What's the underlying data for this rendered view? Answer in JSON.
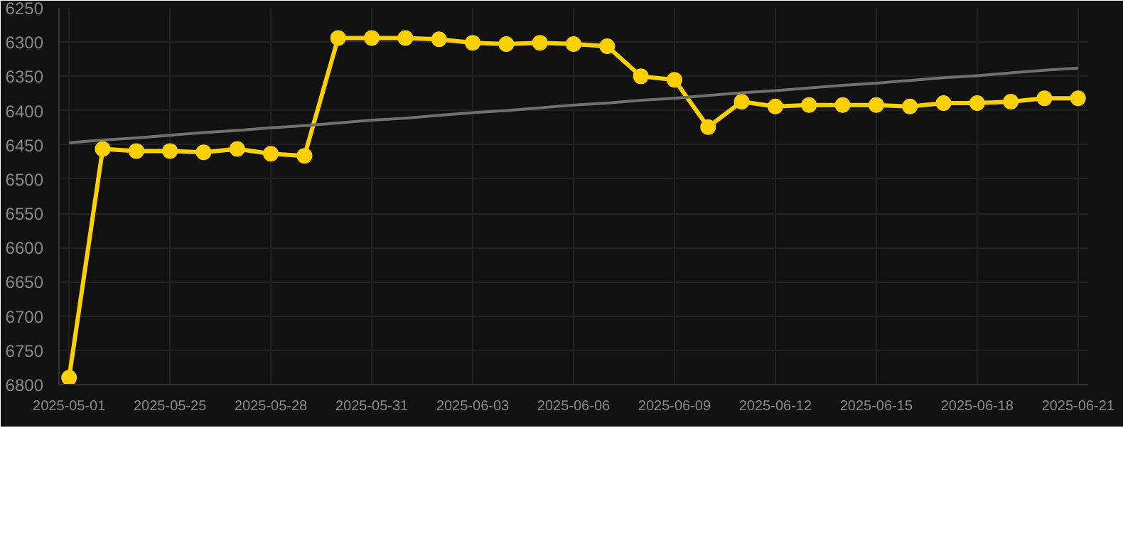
{
  "chart_data": {
    "type": "line",
    "categories": [
      "2025-05-01",
      null,
      null,
      "2025-05-25",
      null,
      null,
      "2025-05-28",
      null,
      null,
      "2025-05-31",
      null,
      null,
      "2025-06-03",
      null,
      null,
      "2025-06-06",
      null,
      null,
      "2025-06-09",
      null,
      null,
      "2025-06-12",
      null,
      null,
      "2025-06-15",
      null,
      null,
      "2025-06-18",
      null,
      null,
      "2025-06-21"
    ],
    "series": [
      {
        "color": "#ffd000",
        "marker": "circle",
        "values": [
          6790,
          6456,
          6459,
          6459,
          6461,
          6456,
          6463,
          6466,
          6294,
          6294,
          6294,
          6296,
          6301,
          6303,
          6301,
          6303,
          6306,
          6350,
          6355,
          6424,
          6387,
          6394,
          6392,
          6392,
          6392,
          6394,
          6389,
          6389,
          6387,
          6382,
          6382
        ]
      },
      {
        "type": "line",
        "color": "#707070",
        "marker": "none",
        "values": [
          6447,
          6443,
          6440,
          6436,
          6432,
          6429,
          6425,
          6422,
          6418,
          6414,
          6411,
          6407,
          6403,
          6400,
          6396,
          6392,
          6389,
          6385,
          6382,
          6378,
          6374,
          6371,
          6367,
          6363,
          6360,
          6356,
          6352,
          6349,
          6345,
          6341,
          6338
        ]
      }
    ],
    "ylim": [
      6800,
      6250
    ],
    "yticks": [
      6250,
      6300,
      6350,
      6400,
      6450,
      6500,
      6550,
      6600,
      6650,
      6700,
      6750,
      6800
    ],
    "grid": true
  }
}
